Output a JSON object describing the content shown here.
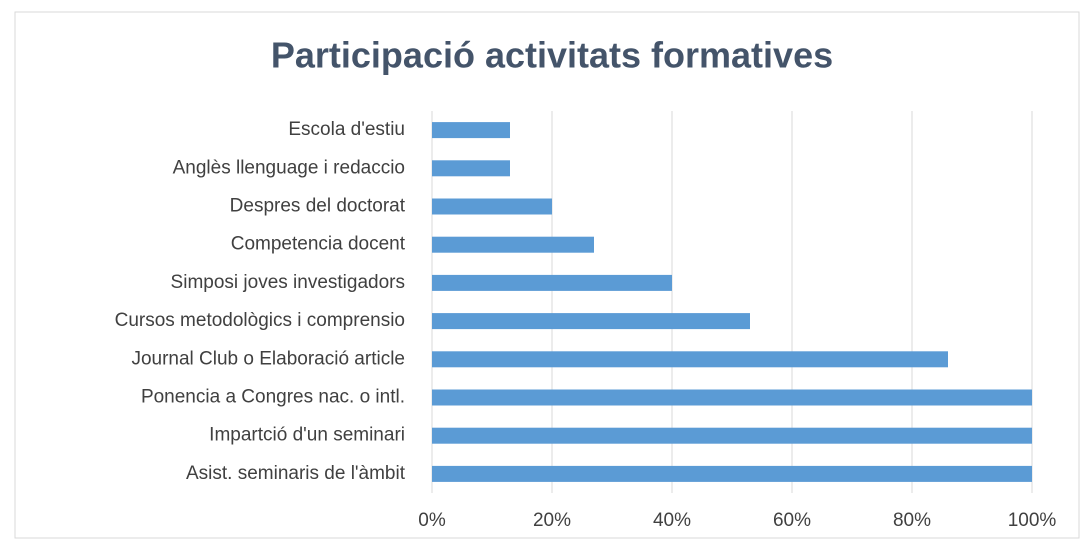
{
  "chart_data": {
    "type": "bar",
    "orientation": "horizontal",
    "title": "Participació activitats formatives",
    "categories": [
      "Escola d'estiu",
      "Anglès  llenguage i redaccio",
      "Despres del doctorat",
      "Competencia docent",
      "Simposi joves investigadors",
      "Cursos metodològics i comprensio",
      "Journal Club o Elaboració article",
      "Ponencia a Congres nac. o intl.",
      "Impartció d'un seminari",
      "Asist. seminaris de l'àmbit"
    ],
    "values": [
      13,
      13,
      20,
      27,
      40,
      53,
      86,
      100,
      100,
      100
    ],
    "color": "#5b9bd5",
    "xlim": [
      0,
      100
    ],
    "xticks": [
      {
        "value": 0,
        "label": "0%"
      },
      {
        "value": 20,
        "label": "20%"
      },
      {
        "value": 40,
        "label": "40%"
      },
      {
        "value": 60,
        "label": "60%"
      },
      {
        "value": 80,
        "label": "80%"
      },
      {
        "value": 100,
        "label": "100%"
      }
    ],
    "grid": true
  }
}
